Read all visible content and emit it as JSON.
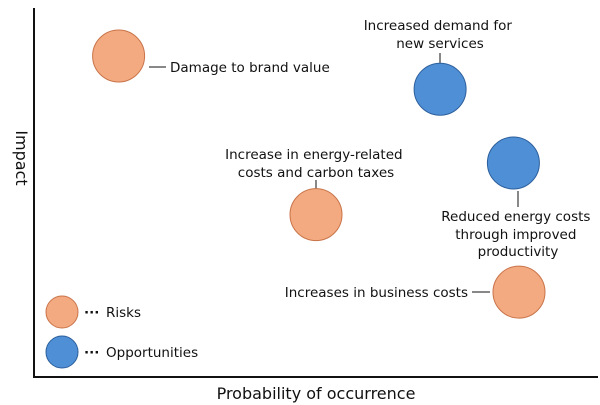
{
  "chart_data": {
    "type": "scatter",
    "xlabel": "Probability of occurrence",
    "ylabel": "Impact",
    "xlim": [
      0,
      100
    ],
    "ylim": [
      0,
      100
    ],
    "grid": false,
    "legend_placement": "bottom-left",
    "series": [
      {
        "name": "Risks",
        "color": "#f4aa80",
        "points": [
          {
            "label": "Damage to brand value",
            "x": 15,
            "y": 87
          },
          {
            "label": "Increase in energy-related costs and carbon taxes",
            "x": 50,
            "y": 44
          },
          {
            "label": "Increases in business costs",
            "x": 86,
            "y": 23
          }
        ]
      },
      {
        "name": "Opportunities",
        "color": "#4f8fd6",
        "points": [
          {
            "label": "Increased demand for new services",
            "x": 72,
            "y": 78
          },
          {
            "label": "Reduced energy costs through improved productivity",
            "x": 85,
            "y": 58
          }
        ]
      }
    ],
    "legend": [
      {
        "marker_color": "#f4aa80",
        "text": "Risks"
      },
      {
        "marker_color": "#4f8fd6",
        "text": "Opportunities"
      }
    ]
  }
}
